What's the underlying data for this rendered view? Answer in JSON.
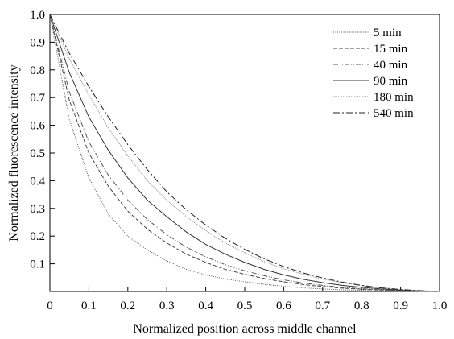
{
  "chart_data": {
    "type": "line",
    "title": "",
    "xlabel": "Normalized position across middle channel",
    "ylabel": "Normalized fluorescence intensity",
    "xlim": [
      0,
      1.0
    ],
    "ylim": [
      0,
      1.0
    ],
    "grid": false,
    "legend_position": "top-right",
    "x_ticks": [
      {
        "value": 0,
        "label": "0"
      },
      {
        "value": 0.1,
        "label": "0.1"
      },
      {
        "value": 0.2,
        "label": "0.2"
      },
      {
        "value": 0.3,
        "label": "0.3"
      },
      {
        "value": 0.4,
        "label": "0.4"
      },
      {
        "value": 0.5,
        "label": "0.5"
      },
      {
        "value": 0.6,
        "label": "0.6"
      },
      {
        "value": 0.7,
        "label": "0.7"
      },
      {
        "value": 0.8,
        "label": "0.8"
      },
      {
        "value": 0.9,
        "label": "0.9"
      },
      {
        "value": 1.0,
        "label": "1.0"
      }
    ],
    "y_ticks": [
      {
        "value": 0.1,
        "label": "0.1"
      },
      {
        "value": 0.2,
        "label": "0.2"
      },
      {
        "value": 0.3,
        "label": "0.3"
      },
      {
        "value": 0.4,
        "label": "0.4"
      },
      {
        "value": 0.5,
        "label": "0.5"
      },
      {
        "value": 0.6,
        "label": "0.6"
      },
      {
        "value": 0.7,
        "label": "0.7"
      },
      {
        "value": 0.8,
        "label": "0.8"
      },
      {
        "value": 0.9,
        "label": "0.9"
      },
      {
        "value": 1.0,
        "label": "1.0"
      }
    ],
    "x": [
      0,
      0.05,
      0.1,
      0.15,
      0.2,
      0.25,
      0.3,
      0.35,
      0.4,
      0.45,
      0.5,
      0.55,
      0.6,
      0.65,
      0.7,
      0.75,
      0.8,
      0.85,
      0.9,
      0.95,
      1.0
    ],
    "series": [
      {
        "name": "5 min",
        "dash": "1,1.5",
        "color": "#555555",
        "values": [
          1.0,
          0.62,
          0.41,
          0.28,
          0.2,
          0.15,
          0.11,
          0.08,
          0.06,
          0.045,
          0.035,
          0.026,
          0.019,
          0.013,
          0.009,
          0.006,
          0.004,
          0.002,
          0.001,
          0.0,
          0.0
        ]
      },
      {
        "name": "15 min",
        "dash": "5,2",
        "color": "#444444",
        "values": [
          1.0,
          0.69,
          0.5,
          0.38,
          0.29,
          0.225,
          0.175,
          0.135,
          0.105,
          0.08,
          0.062,
          0.047,
          0.035,
          0.025,
          0.018,
          0.012,
          0.008,
          0.005,
          0.003,
          0.001,
          0.0
        ]
      },
      {
        "name": "40 min",
        "dash": "6,2,1,2,1,2",
        "color": "#555555",
        "values": [
          1.0,
          0.72,
          0.54,
          0.42,
          0.33,
          0.26,
          0.205,
          0.16,
          0.125,
          0.097,
          0.075,
          0.057,
          0.042,
          0.031,
          0.022,
          0.015,
          0.01,
          0.006,
          0.003,
          0.001,
          0.0
        ]
      },
      {
        "name": "90 min",
        "dash": "",
        "color": "#333333",
        "values": [
          1.0,
          0.79,
          0.63,
          0.51,
          0.41,
          0.33,
          0.27,
          0.215,
          0.17,
          0.135,
          0.105,
          0.08,
          0.06,
          0.044,
          0.032,
          0.022,
          0.015,
          0.009,
          0.005,
          0.002,
          0.0
        ]
      },
      {
        "name": "180 min",
        "dash": "1,1",
        "color": "#888888",
        "values": [
          1.0,
          0.84,
          0.71,
          0.59,
          0.49,
          0.4,
          0.33,
          0.27,
          0.22,
          0.175,
          0.14,
          0.108,
          0.082,
          0.062,
          0.045,
          0.032,
          0.021,
          0.013,
          0.007,
          0.003,
          0.0
        ]
      },
      {
        "name": "540 min",
        "dash": "8,3,2,3",
        "color": "#222222",
        "values": [
          1.0,
          0.86,
          0.74,
          0.63,
          0.53,
          0.44,
          0.36,
          0.295,
          0.24,
          0.192,
          0.152,
          0.118,
          0.09,
          0.067,
          0.049,
          0.034,
          0.022,
          0.013,
          0.007,
          0.003,
          0.0
        ]
      }
    ]
  }
}
